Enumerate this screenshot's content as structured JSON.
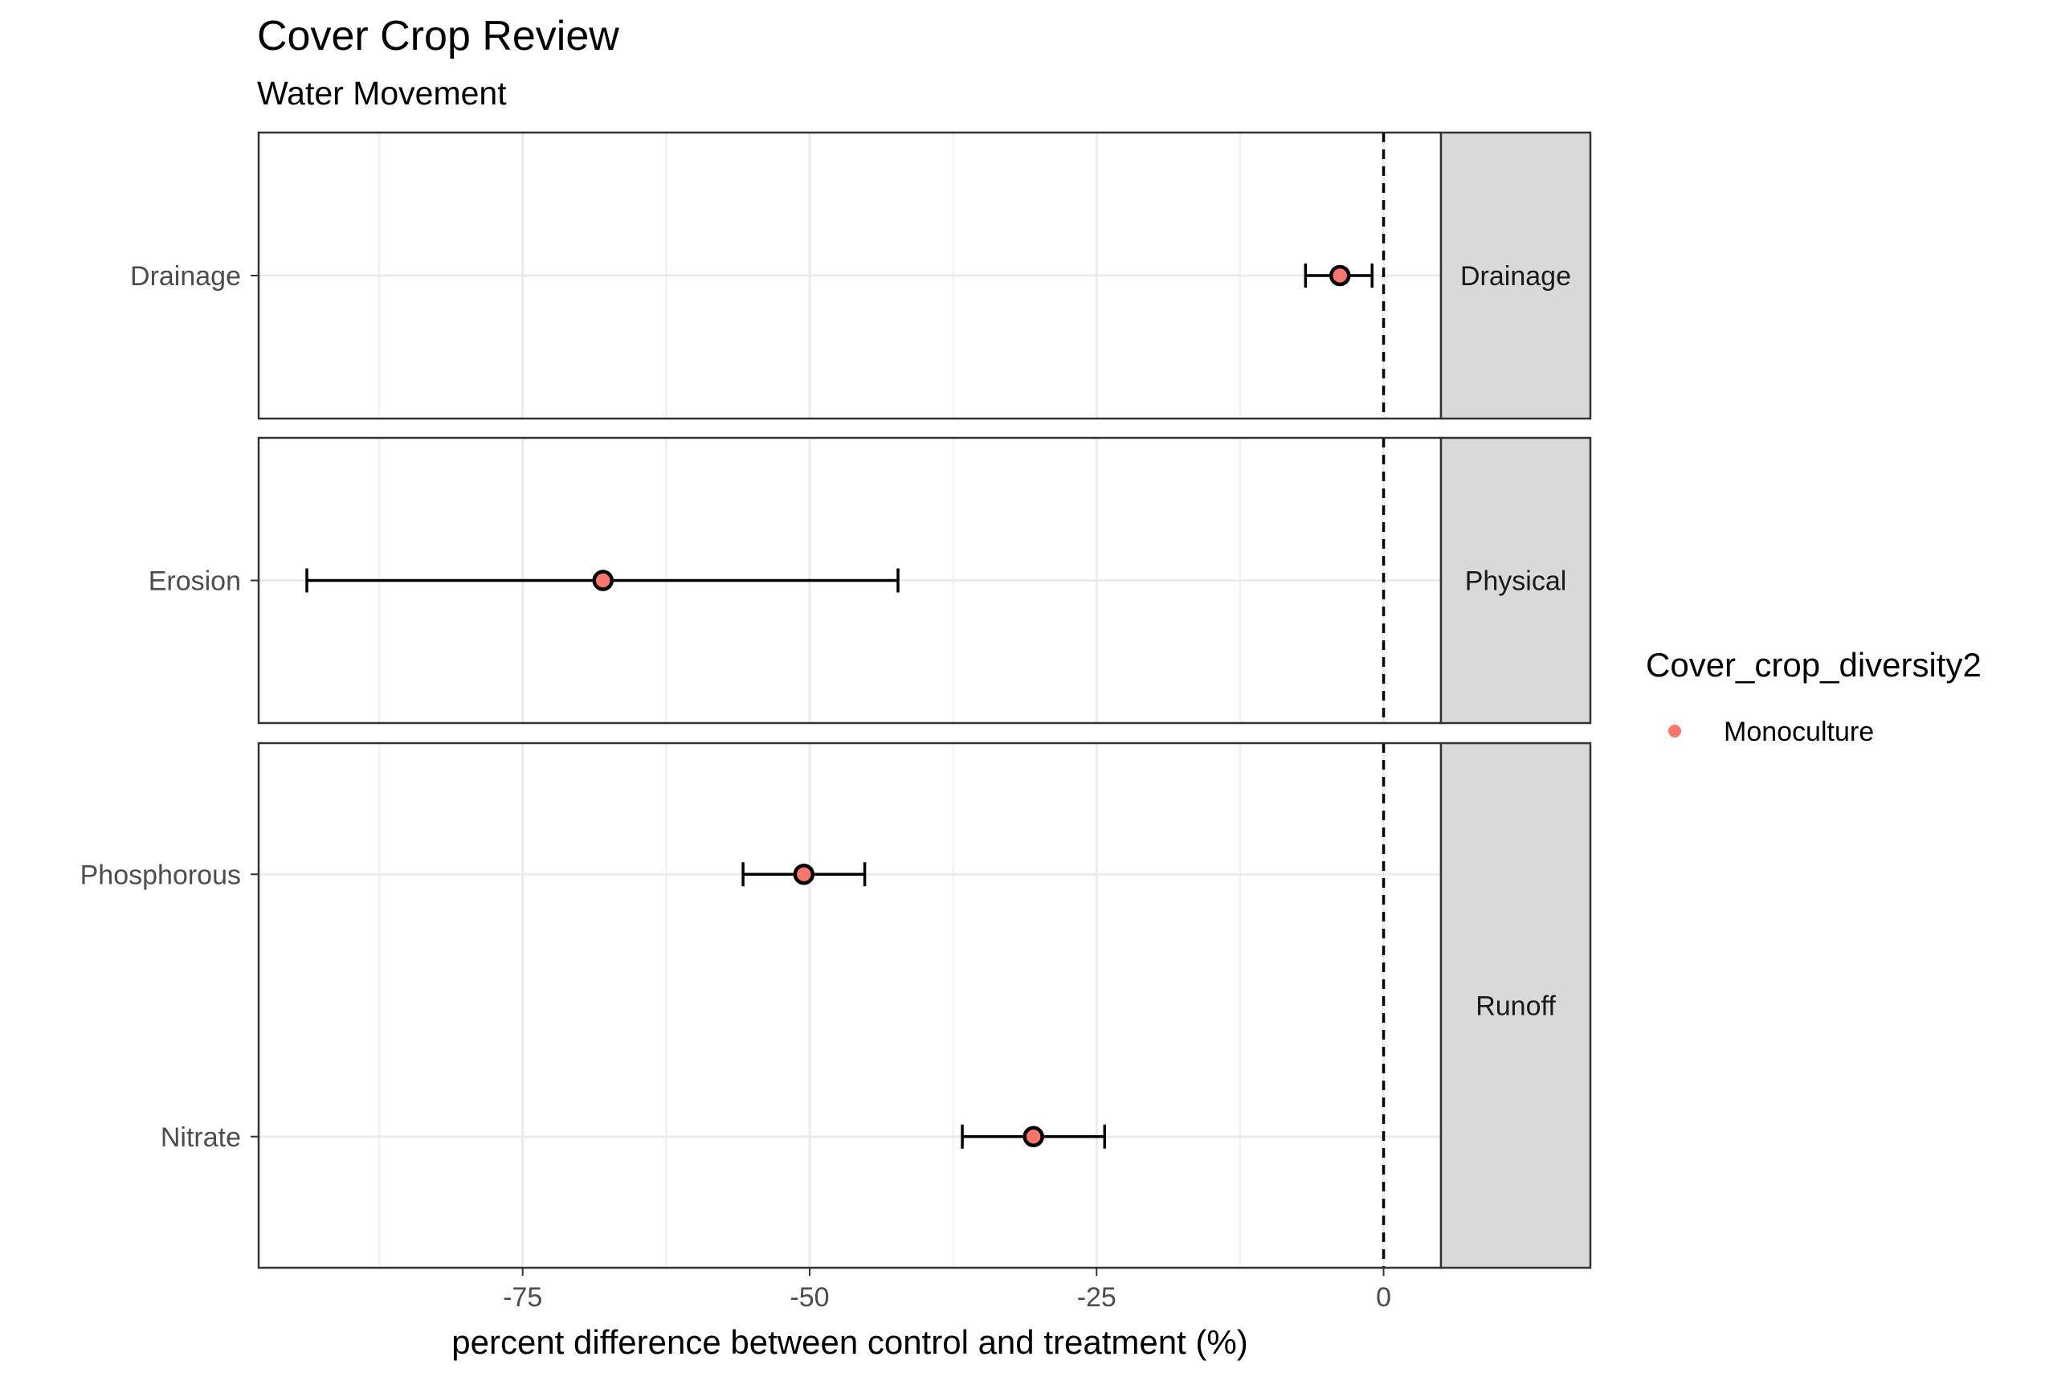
{
  "chart_data": {
    "type": "scatter",
    "title": "Cover Crop Review",
    "subtitle": "Water Movement",
    "xlabel": "percent difference between control and treatment (%)",
    "ylabel": "",
    "xlim": [
      -98,
      5
    ],
    "x_ticks": [
      -75,
      -50,
      -25,
      0
    ],
    "x_tick_labels": [
      "-75",
      "-50",
      "-25",
      "0"
    ],
    "x_minor_grid": [
      -87.5,
      -62.5,
      -37.5,
      -12.5
    ],
    "reference_line": 0,
    "grid": true,
    "legend": {
      "title": "Cover_crop_diversity2",
      "position": "right",
      "entries": [
        {
          "label": "Monoculture",
          "color": "#F8766D"
        }
      ]
    },
    "panels": [
      {
        "strip": "Drainage",
        "categories": [
          "Drainage"
        ],
        "points": [
          {
            "category": "Drainage",
            "x": -3.8,
            "lower": -6.8,
            "upper": -1.0
          }
        ]
      },
      {
        "strip": "Physical",
        "categories": [
          "Erosion"
        ],
        "points": [
          {
            "category": "Erosion",
            "x": -68.0,
            "lower": -93.8,
            "upper": -42.3
          }
        ]
      },
      {
        "strip": "Runoff",
        "categories": [
          "Phosphorous",
          "Nitrate"
        ],
        "points": [
          {
            "category": "Phosphorous",
            "x": -50.5,
            "lower": -55.8,
            "upper": -45.2
          },
          {
            "category": "Nitrate",
            "x": -30.5,
            "lower": -36.7,
            "upper": -24.3
          }
        ]
      }
    ],
    "colors": {
      "point_fill": "#F8766D",
      "point_stroke": "#000000",
      "strip_background": "#D9D9D9",
      "grid": "#EBEBEB",
      "panel_border": "#333333"
    }
  }
}
